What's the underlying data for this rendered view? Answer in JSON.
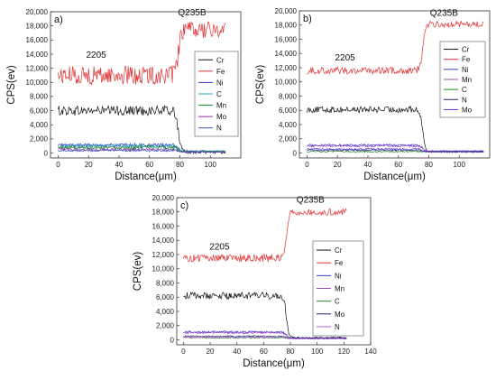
{
  "chart_data": [
    {
      "type": "line",
      "panel_label": "a)",
      "xlabel": "Distance(μm)",
      "ylabel": "CPS(ev)",
      "xlim": [
        -5,
        120
      ],
      "ylim": [
        -700,
        20000
      ],
      "xticks": [
        0,
        20,
        40,
        60,
        80,
        100
      ],
      "yticks": [
        0,
        2000,
        4000,
        6000,
        8000,
        10000,
        12000,
        14000,
        16000,
        18000,
        20000
      ],
      "ytick_labels": [
        "0",
        "2,000",
        "4,000",
        "6,000",
        "8,000",
        "10,000",
        "12,000",
        "14,000",
        "16,000",
        "18,000",
        "20,000"
      ],
      "annotations": [
        {
          "text": "2205",
          "x": 25,
          "y": 13500
        },
        {
          "text": "Q235B",
          "x": 88,
          "y": 19500
        }
      ],
      "legend": {
        "placement": "right",
        "entries": [
          "Cr",
          "Fe",
          "Ni",
          "C",
          "Mn",
          "Mo",
          "N"
        ]
      },
      "x_end": 110,
      "transition_x": 79,
      "series": [
        {
          "name": "Cr",
          "color": "#111111",
          "left": 6000,
          "right": 150,
          "noise": 700
        },
        {
          "name": "Fe",
          "color": "#e03030",
          "left": 11000,
          "right": 17400,
          "noise": 1300
        },
        {
          "name": "Ni",
          "color": "#3a3ad0",
          "left": 1100,
          "right": 250,
          "noise": 250
        },
        {
          "name": "C",
          "color": "#2aa5c8",
          "left": 1000,
          "right": 250,
          "noise": 300
        },
        {
          "name": "Mn",
          "color": "#1f8a1f",
          "left": 800,
          "right": 200,
          "noise": 250
        },
        {
          "name": "Mo",
          "color": "#8a2aa5",
          "left": 500,
          "right": 150,
          "noise": 200
        },
        {
          "name": "N",
          "color": "#3b55c0",
          "left": 350,
          "right": 150,
          "noise": 150
        }
      ]
    },
    {
      "type": "line",
      "panel_label": "b)",
      "xlabel": "Distance(μm)",
      "ylabel": "CPS(ev)",
      "xlim": [
        -5,
        120
      ],
      "ylim": [
        -700,
        20000
      ],
      "xticks": [
        0,
        20,
        40,
        60,
        80,
        100
      ],
      "yticks": [
        0,
        2000,
        4000,
        6000,
        8000,
        10000,
        12000,
        14000,
        16000,
        18000,
        20000
      ],
      "ytick_labels": [
        "0",
        "2,000",
        "4,000",
        "6,000",
        "8,000",
        "10,000",
        "12,000",
        "14,000",
        "16,000",
        "18,000",
        "20,000"
      ],
      "annotations": [
        {
          "text": "2205",
          "x": 25,
          "y": 13000
        },
        {
          "text": "Q235B",
          "x": 90,
          "y": 19300
        }
      ],
      "legend": {
        "placement": "right",
        "entries": [
          "Cr",
          "Fe",
          "Ni",
          "Mn",
          "C",
          "N",
          "Mo"
        ]
      },
      "x_end": 116,
      "transition_x": 76,
      "series": [
        {
          "name": "Cr",
          "color": "#111111",
          "left": 6100,
          "right": 200,
          "noise": 450
        },
        {
          "name": "Fe",
          "color": "#e03030",
          "left": 11600,
          "right": 18100,
          "noise": 500
        },
        {
          "name": "Ni",
          "color": "#3a3ad0",
          "left": 1100,
          "right": 280,
          "noise": 150
        },
        {
          "name": "Mn",
          "color": "#9a4ac8",
          "left": 1000,
          "right": 250,
          "noise": 150
        },
        {
          "name": "C",
          "color": "#1f8a1f",
          "left": 200,
          "right": 150,
          "noise": 100
        },
        {
          "name": "N",
          "color": "#222288",
          "left": 400,
          "right": 200,
          "noise": 100
        },
        {
          "name": "Mo",
          "color": "#6a3ad0",
          "left": 550,
          "right": 150,
          "noise": 120
        }
      ]
    },
    {
      "type": "line",
      "panel_label": "c)",
      "xlabel": "Distance(μm)",
      "ylabel": "CPS(ev)",
      "xlim": [
        -5,
        140
      ],
      "ylim": [
        -700,
        20000
      ],
      "xticks": [
        0,
        20,
        40,
        60,
        80,
        100,
        120,
        140
      ],
      "yticks": [
        0,
        2000,
        4000,
        6000,
        8000,
        10000,
        12000,
        14000,
        16000,
        18000,
        20000
      ],
      "ytick_labels": [
        "0",
        "2,000",
        "4,000",
        "6,000",
        "8,000",
        "10,000",
        "12,000",
        "14,000",
        "16,000",
        "18,000",
        "20,000"
      ],
      "annotations": [
        {
          "text": "2205",
          "x": 27,
          "y": 12700
        },
        {
          "text": "Q235B",
          "x": 95,
          "y": 19300
        }
      ],
      "legend": {
        "placement": "right",
        "entries": [
          "Cr",
          "Fe",
          "Ni",
          "Mn",
          "C",
          "Mo",
          "N"
        ]
      },
      "x_end": 122,
      "transition_x": 77,
      "series": [
        {
          "name": "Cr",
          "color": "#111111",
          "left": 6200,
          "right": 250,
          "noise": 500
        },
        {
          "name": "Fe",
          "color": "#e03030",
          "left": 11500,
          "right": 18000,
          "noise": 550
        },
        {
          "name": "Ni",
          "color": "#3a3ad0",
          "left": 1100,
          "right": 300,
          "noise": 150
        },
        {
          "name": "Mn",
          "color": "#9a4ac8",
          "left": 1000,
          "right": 250,
          "noise": 150
        },
        {
          "name": "C",
          "color": "#1f8a1f",
          "left": 300,
          "right": 200,
          "noise": 100
        },
        {
          "name": "Mo",
          "color": "#222266",
          "left": 500,
          "right": 200,
          "noise": 100
        },
        {
          "name": "N",
          "color": "#b060d0",
          "left": 350,
          "right": 150,
          "noise": 100
        }
      ]
    }
  ]
}
